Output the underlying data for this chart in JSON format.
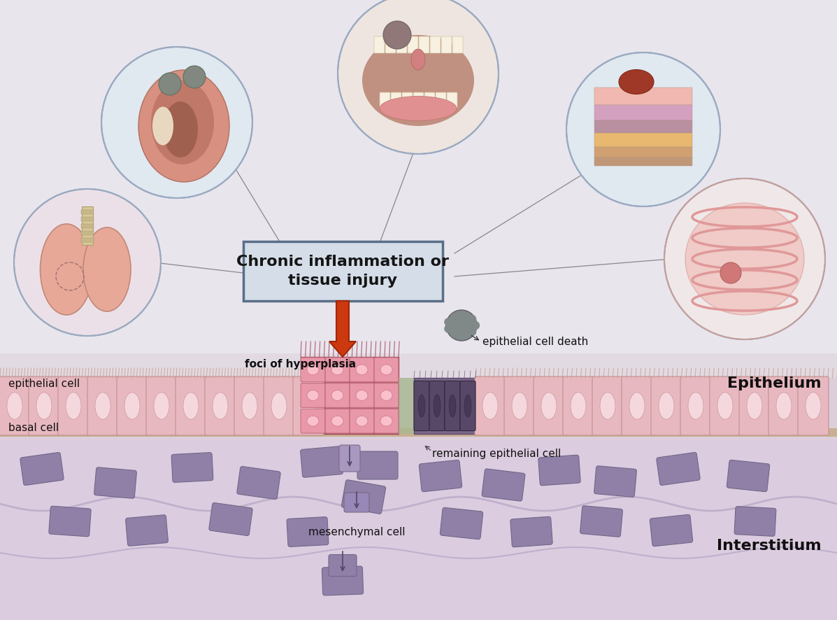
{
  "bg_color": "#e8e5ed",
  "title_box_text": "Chronic inflammation or\ntissue injury",
  "title_box_color": "#d4dde8",
  "title_box_border": "#5a6e88",
  "label_epithelial_cell": "epithelial cell",
  "label_basal_cell": "basal cell",
  "label_foci": "foci of hyperplasia",
  "label_cell_death": "epithelial cell death",
  "label_remaining": "remaining epithelial cell",
  "label_mesenchymal": "mesenchymal cell",
  "label_epithelium": "Epithelium",
  "label_interstitium": "Interstitium",
  "normal_cell_color": "#e8b8c0",
  "normal_cell_border": "#c09090",
  "normal_cell_nucleus": "#f5d8de",
  "hyperplasia_bg": "#c86878",
  "hyperplasia_cell_color": "#e898a8",
  "hyperplasia_cell_nucleus": "#fac0cc",
  "dead_bg_color": "#7a6888",
  "dead_cell_color": "#584868",
  "dead_cell_nucleus": "#483858",
  "transition_color": "#a8b890",
  "mesenchymal_color": "#9080a8",
  "mesenchymal_border": "#706888",
  "cilia_color": "#c8a090",
  "base_membrane_color": "#c8b090",
  "interstitium_color": "#e0d4e8",
  "wave_color": "#cebede",
  "arrow_color": "#cc3810",
  "arrow_edge": "#a02808",
  "small_arrow_color": "#5a6070",
  "organ_border": "#9aaac0",
  "kidney_circle_color": "#e0e8f0",
  "mouth_circle_color": "#eee5e0",
  "skin_circle_color": "#e0e8f0",
  "lung_circle_color": "#ece0e8",
  "intestine_circle_color": "#f0e8e8",
  "line_color": "#888888"
}
